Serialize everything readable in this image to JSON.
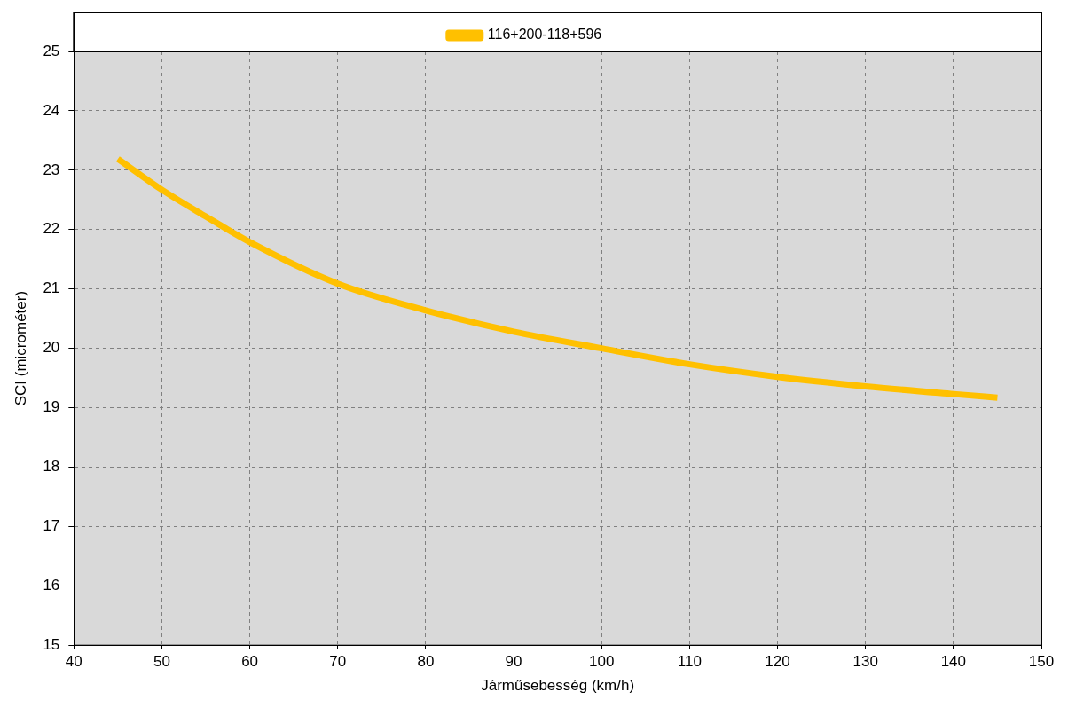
{
  "chart_data": {
    "type": "line",
    "xlabel": "Járműsebesség (km/h)",
    "ylabel": "SCI (microméter)",
    "series": [
      {
        "name": "116+200-118+596",
        "color": "#ffc000",
        "x": [
          45,
          50,
          55,
          60,
          70,
          80,
          90,
          100,
          110,
          120,
          130,
          140,
          145
        ],
        "values": [
          23.19,
          22.67,
          22.22,
          21.79,
          21.09,
          20.64,
          20.28,
          20.0,
          19.73,
          19.52,
          19.36,
          19.23,
          19.17
        ]
      }
    ],
    "xlim": [
      40,
      150
    ],
    "xticks": [
      40,
      50,
      60,
      70,
      80,
      90,
      100,
      110,
      120,
      130,
      140,
      150
    ],
    "ylim": [
      15,
      25
    ],
    "yticks": [
      15,
      16,
      17,
      18,
      19,
      20,
      21,
      22,
      23,
      24,
      25
    ],
    "grid": true,
    "legend": "top",
    "marker": "none",
    "line_style": "solid"
  }
}
